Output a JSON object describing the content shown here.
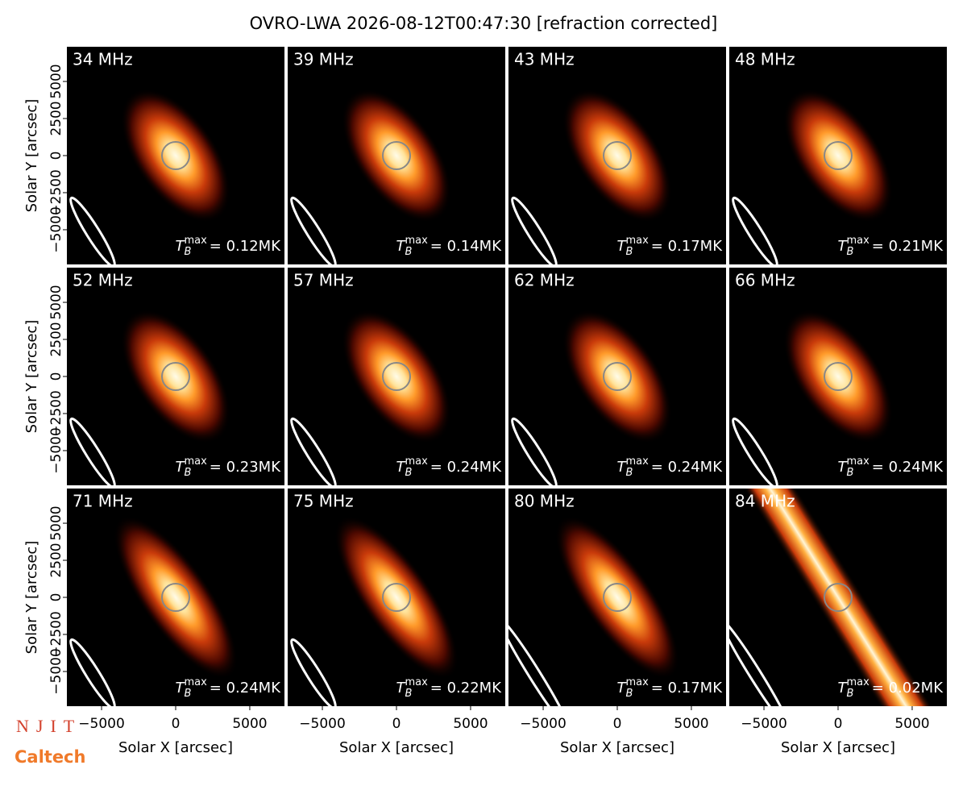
{
  "title": "OVRO-LWA 2026-08-12T00:47:30 [refraction corrected]",
  "logos": [
    "NJIT",
    "Caltech"
  ],
  "chart_data": [
    {
      "type": "image",
      "label": "34 MHz",
      "annotation": {
        "symbol": "T",
        "sub": "B",
        "sup": "max",
        "text": "= 0.12MK"
      },
      "xlim": [
        -7340,
        7340
      ],
      "ylim": [
        -7340,
        7340
      ],
      "ylabel": "Solar Y [arcsec]",
      "yticks": [
        {
          "value": -5000,
          "label": "−5000"
        },
        {
          "value": -2500,
          "label": "−2500"
        },
        0,
        2500,
        5000
      ]
    },
    {
      "type": "image",
      "label": "39 MHz",
      "annotation": {
        "symbol": "T",
        "sub": "B",
        "sup": "max",
        "text": "= 0.14MK"
      },
      "xlim": [
        -7340,
        7340
      ],
      "ylim": [
        -7340,
        7340
      ]
    },
    {
      "type": "image",
      "label": "43 MHz",
      "annotation": {
        "symbol": "T",
        "sub": "B",
        "sup": "max",
        "text": "= 0.17MK"
      },
      "xlim": [
        -7340,
        7340
      ],
      "ylim": [
        -7340,
        7340
      ]
    },
    {
      "type": "image",
      "label": "48 MHz",
      "annotation": {
        "symbol": "T",
        "sub": "B",
        "sup": "max",
        "text": "= 0.21MK"
      },
      "xlim": [
        -7340,
        7340
      ],
      "ylim": [
        -7340,
        7340
      ]
    },
    {
      "type": "image",
      "label": "52 MHz",
      "annotation": {
        "symbol": "T",
        "sub": "B",
        "sup": "max",
        "text": "= 0.23MK"
      },
      "xlim": [
        -7340,
        7340
      ],
      "ylim": [
        -7340,
        7340
      ],
      "ylabel": "Solar Y [arcsec]",
      "yticks": [
        {
          "value": -5000,
          "label": "−5000"
        },
        {
          "value": -2500,
          "label": "−2500"
        },
        0,
        2500,
        5000
      ]
    },
    {
      "type": "image",
      "label": "57 MHz",
      "annotation": {
        "symbol": "T",
        "sub": "B",
        "sup": "max",
        "text": "= 0.24MK"
      },
      "xlim": [
        -7340,
        7340
      ],
      "ylim": [
        -7340,
        7340
      ]
    },
    {
      "type": "image",
      "label": "62 MHz",
      "annotation": {
        "symbol": "T",
        "sub": "B",
        "sup": "max",
        "text": "= 0.24MK"
      },
      "xlim": [
        -7340,
        7340
      ],
      "ylim": [
        -7340,
        7340
      ]
    },
    {
      "type": "image",
      "label": "66 MHz",
      "annotation": {
        "symbol": "T",
        "sub": "B",
        "sup": "max",
        "text": "= 0.24MK"
      },
      "xlim": [
        -7340,
        7340
      ],
      "ylim": [
        -7340,
        7340
      ]
    },
    {
      "type": "image",
      "label": "71 MHz",
      "annotation": {
        "symbol": "T",
        "sub": "B",
        "sup": "max",
        "text": "= 0.24MK"
      },
      "xlim": [
        -7340,
        7340
      ],
      "ylim": [
        -7340,
        7340
      ],
      "ylabel": "Solar Y [arcsec]",
      "yticks": [
        {
          "value": -5000,
          "label": "−5000"
        },
        {
          "value": -2500,
          "label": "−2500"
        },
        0,
        2500,
        5000
      ],
      "xlabel": "Solar X [arcsec]",
      "xticks": [
        {
          "value": -5000,
          "label": "−5000"
        },
        0,
        5000
      ]
    },
    {
      "type": "image",
      "label": "75 MHz",
      "annotation": {
        "symbol": "T",
        "sub": "B",
        "sup": "max",
        "text": "= 0.22MK"
      },
      "xlim": [
        -7340,
        7340
      ],
      "ylim": [
        -7340,
        7340
      ],
      "xlabel": "Solar X [arcsec]",
      "xticks": [
        {
          "value": -5000,
          "label": "−5000"
        },
        0,
        5000
      ]
    },
    {
      "type": "image",
      "label": "80 MHz",
      "annotation": {
        "symbol": "T",
        "sub": "B",
        "sup": "max",
        "text": "= 0.17MK"
      },
      "xlim": [
        -7340,
        7340
      ],
      "ylim": [
        -7340,
        7340
      ],
      "xlabel": "Solar X [arcsec]",
      "xticks": [
        {
          "value": -5000,
          "label": "−5000"
        },
        0,
        5000
      ]
    },
    {
      "type": "image",
      "label": "84 MHz",
      "annotation": {
        "symbol": "T",
        "sub": "B",
        "sup": "max",
        "text": "= 0.02MK"
      },
      "xlim": [
        -7340,
        7340
      ],
      "ylim": [
        -7340,
        7340
      ],
      "xlabel": "Solar X [arcsec]",
      "xticks": [
        {
          "value": -5000,
          "label": "−5000"
        },
        0,
        5000
      ]
    }
  ]
}
